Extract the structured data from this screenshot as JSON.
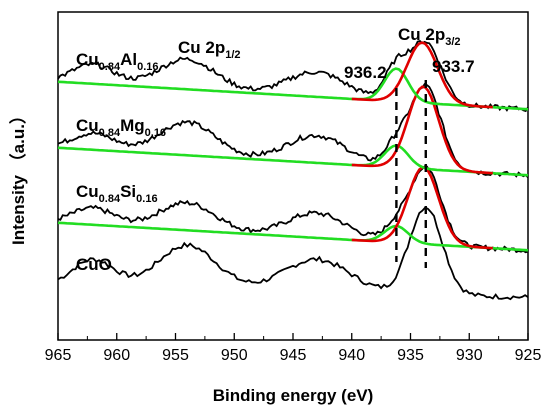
{
  "chart_data": {
    "type": "line",
    "title": "",
    "xlabel": "Binding energy (eV)",
    "ylabel": "Intensity （a.u.）",
    "xlim": [
      965,
      925
    ],
    "x_reversed": true,
    "xticks": [
      "965",
      "960",
      "955",
      "950",
      "945",
      "940",
      "935",
      "930",
      "925"
    ],
    "y_ticks_shown": false,
    "colors": {
      "data": "#000000",
      "fit_main": "#e00000",
      "fit_satellite": "#22dd22",
      "marker": "#000000"
    },
    "series": [
      {
        "name": "CuO",
        "label_main": "CuO",
        "label_sub": "",
        "raw_peaks": [
          [
            962,
            0.5,
            1.8
          ],
          [
            954,
            0.8,
            2.5
          ],
          [
            943,
            0.6,
            2.8
          ],
          [
            933.7,
            1.6,
            1.4
          ]
        ],
        "raw_step": 0.25,
        "bg_start": 0.25,
        "bg_end": 0.05,
        "main_fit": [],
        "sat_fit": []
      },
      {
        "name": "Cu0.84Si0.16",
        "label_main": "Cu",
        "label_sub": "0.84",
        "label_main2": "Si",
        "label_sub2": "0.16",
        "raw_peaks": [
          [
            962,
            0.3,
            1.8
          ],
          [
            954,
            0.5,
            2.4
          ],
          [
            943,
            0.45,
            2.5
          ],
          [
            936.2,
            0.3,
            1.0
          ],
          [
            933.7,
            1.4,
            1.3
          ]
        ],
        "raw_step": 0.2,
        "bg_start": 0.55,
        "bg_end": 0.05,
        "main_fit": [
          933.9,
          1.4,
          1.3
        ],
        "sat_fit": [
          936.2,
          0.3,
          1.0
        ]
      },
      {
        "name": "Cu0.84Mg0.16",
        "label_main": "Cu",
        "label_sub": "0.84",
        "label_main2": "Mg",
        "label_sub2": "0.16",
        "raw_peaks": [
          [
            962,
            0.3,
            1.8
          ],
          [
            954,
            0.6,
            2.4
          ],
          [
            943,
            0.5,
            2.5
          ],
          [
            936.2,
            0.4,
            1.0
          ],
          [
            933.7,
            1.5,
            1.3
          ]
        ],
        "raw_step": 0.2,
        "bg_start": 0.55,
        "bg_end": 0.05,
        "main_fit": [
          933.9,
          1.5,
          1.3
        ],
        "sat_fit": [
          936.2,
          0.4,
          1.0
        ]
      },
      {
        "name": "Cu0.84Al0.16",
        "label_main": "Cu",
        "label_sub": "0.84",
        "label_main2": "Al",
        "label_sub2": "0.16",
        "raw_peaks": [
          [
            962,
            0.35,
            1.8
          ],
          [
            954,
            0.55,
            2.4
          ],
          [
            943,
            0.45,
            2.5
          ],
          [
            936.2,
            0.6,
            1.0
          ],
          [
            933.7,
            1.1,
            1.3
          ]
        ],
        "raw_step": 0.2,
        "bg_start": 0.55,
        "bg_end": 0.05,
        "main_fit": [
          934.0,
          1.1,
          1.3
        ],
        "sat_fit": [
          936.2,
          0.6,
          1.0
        ]
      }
    ],
    "annotations": {
      "cu2p12": {
        "main": "Cu 2p",
        "sub": "1/2"
      },
      "cu2p32": {
        "main": "Cu 2p",
        "sub": "3/2"
      },
      "line1": {
        "x": 936.2,
        "label": "936.2"
      },
      "line2": {
        "x": 933.7,
        "label": "933.7"
      }
    }
  }
}
